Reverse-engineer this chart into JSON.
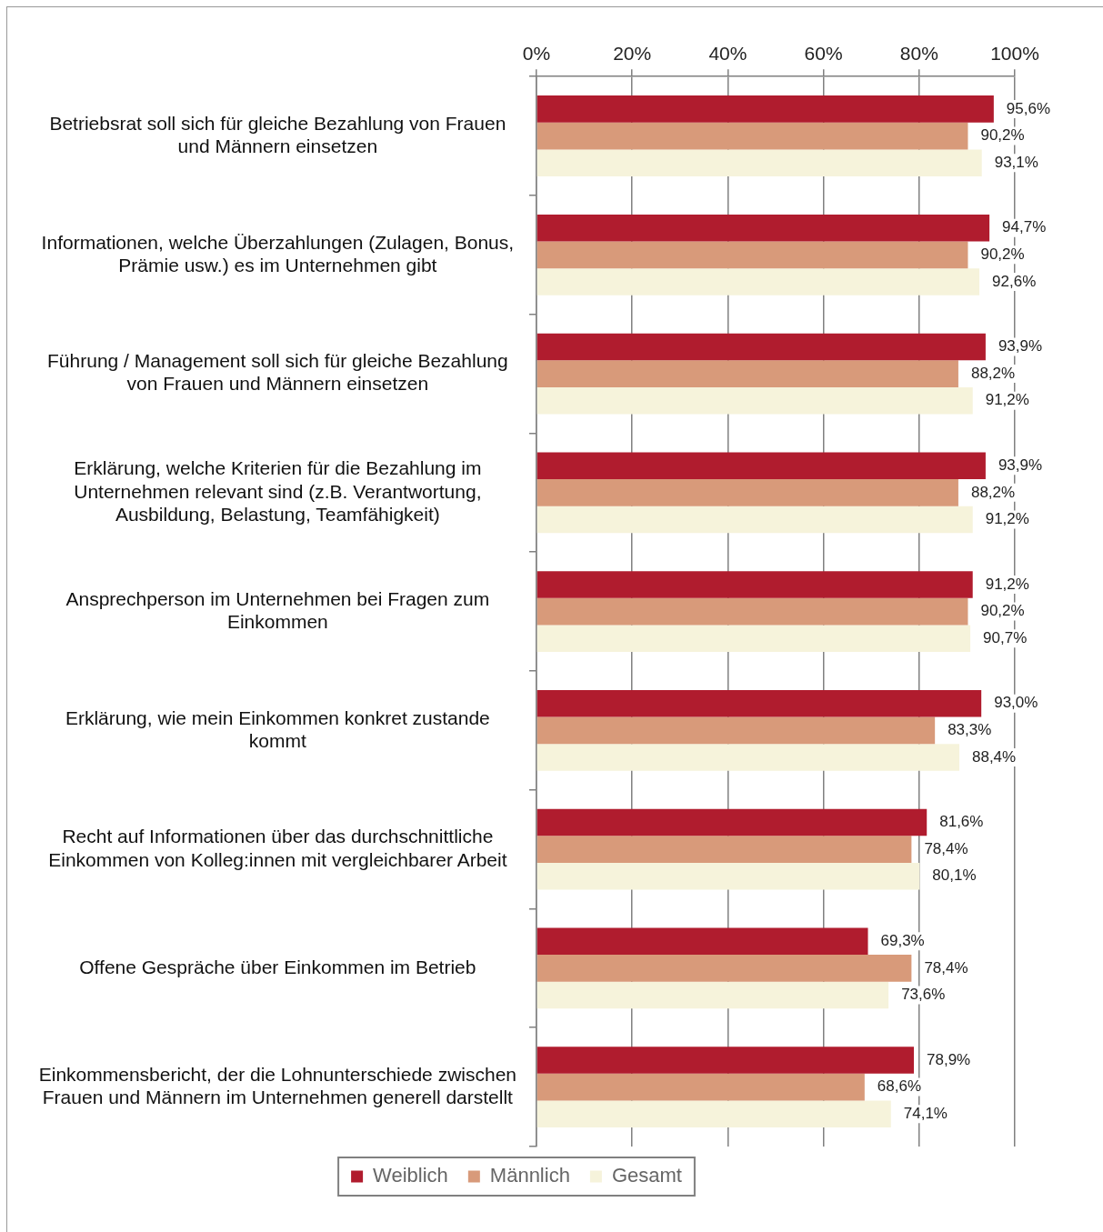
{
  "chart_data": {
    "type": "bar",
    "orientation": "horizontal",
    "categories": [
      "Betriebsrat soll sich für gleiche Bezahlung von Frauen und Männern einsetzen",
      "Informationen, welche Überzahlungen (Zulagen, Bonus, Prämie usw.) es im Unternehmen gibt",
      "Führung / Management soll sich für gleiche Bezahlung von Frauen und Männern einsetzen",
      "Erklärung, welche Kriterien für die Bezahlung im Unternehmen relevant sind (z.B. Verantwortung, Ausbildung, Belastung, Teamfähigkeit)",
      "Ansprechperson im Unternehmen bei Fragen zum Einkommen",
      "Erklärung, wie mein Einkommen konkret zustande kommt",
      "Recht auf Informationen über das durchschnittliche Einkommen von Kolleg:innen mit vergleichbarer Arbeit",
      "Offene Gespräche über Einkommen im Betrieb",
      "Einkommensbericht, der die Lohnunterschiede zwischen Frauen und Männern im Unternehmen generell darstellt"
    ],
    "series": [
      {
        "name": "Weiblich",
        "color": "#b01c2e",
        "values": [
          95.6,
          94.7,
          93.9,
          93.9,
          91.2,
          93.0,
          81.6,
          69.3,
          78.9
        ],
        "value_labels": [
          "95,6%",
          "94,7%",
          "93,9%",
          "93,9%",
          "91,2%",
          "93,0%",
          "81,6%",
          "69,3%",
          "78,9%"
        ]
      },
      {
        "name": "Männlich",
        "color": "#d89a7a",
        "values": [
          90.2,
          90.2,
          88.2,
          88.2,
          90.2,
          83.3,
          78.4,
          78.4,
          68.6
        ],
        "value_labels": [
          "90,2%",
          "90,2%",
          "88,2%",
          "88,2%",
          "90,2%",
          "83,3%",
          "78,4%",
          "78,4%",
          "68,6%"
        ]
      },
      {
        "name": "Gesamt",
        "color": "#f6f3db",
        "values": [
          93.1,
          92.6,
          91.2,
          91.2,
          90.7,
          88.4,
          80.1,
          73.6,
          74.1
        ],
        "value_labels": [
          "93,1%",
          "92,6%",
          "91,2%",
          "91,2%",
          "90,7%",
          "88,4%",
          "80,1%",
          "73,6%",
          "74,1%"
        ]
      }
    ],
    "xlim": [
      0,
      100
    ],
    "xticks": [
      {
        "value": 0,
        "label": "0%"
      },
      {
        "value": 20,
        "label": "20%"
      },
      {
        "value": 40,
        "label": "40%"
      },
      {
        "value": 60,
        "label": "60%"
      },
      {
        "value": 80,
        "label": "80%"
      },
      {
        "value": 100,
        "label": "100%"
      }
    ],
    "grid": "x",
    "legend": "bottom"
  }
}
